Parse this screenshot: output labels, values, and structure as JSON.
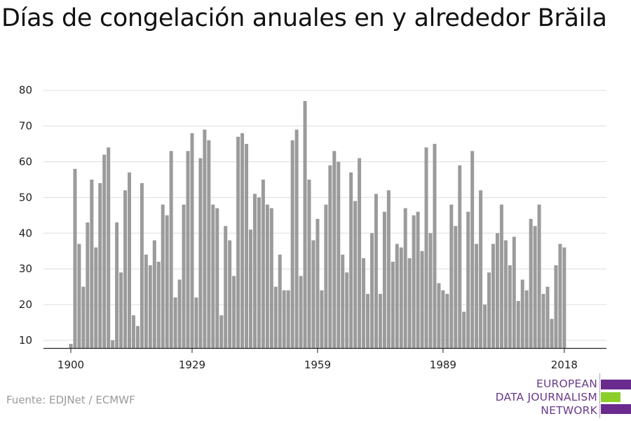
{
  "title": "Días de congelación anuales en y alrededor Brăila",
  "source": "Fuente: EDJNet / ECMWF",
  "logo": {
    "line1": "EUROPEAN",
    "line2": "DATA JOURNALISM",
    "line3": "NETWORK"
  },
  "colors": {
    "bar": "#9b9b9b",
    "grid": "#dddddd",
    "axis": "#222222",
    "logo_purple": "#6b2a8e",
    "logo_green": "#8ccf2a"
  },
  "chart_data": {
    "type": "bar",
    "title": "Días de congelación anuales en y alrededor Brăila",
    "xlabel": "",
    "ylabel": "",
    "x_ticks": [
      "1900",
      "1929",
      "1959",
      "1989",
      "2018"
    ],
    "y_ticks": [
      10,
      20,
      30,
      40,
      50,
      60,
      70,
      80
    ],
    "ylim": [
      8,
      82
    ],
    "grid": "horizontal",
    "start_year": 1900,
    "years": [
      1900,
      1901,
      1902,
      1903,
      1904,
      1905,
      1906,
      1907,
      1908,
      1909,
      1910,
      1911,
      1912,
      1913,
      1914,
      1915,
      1916,
      1917,
      1918,
      1919,
      1920,
      1921,
      1922,
      1923,
      1924,
      1925,
      1926,
      1927,
      1928,
      1929,
      1930,
      1931,
      1932,
      1933,
      1934,
      1935,
      1936,
      1937,
      1938,
      1939,
      1940,
      1941,
      1942,
      1943,
      1944,
      1945,
      1946,
      1947,
      1948,
      1949,
      1950,
      1951,
      1952,
      1953,
      1954,
      1955,
      1956,
      1957,
      1958,
      1959,
      1960,
      1961,
      1962,
      1963,
      1964,
      1965,
      1966,
      1967,
      1968,
      1969,
      1970,
      1971,
      1972,
      1973,
      1974,
      1975,
      1976,
      1977,
      1978,
      1979,
      1980,
      1981,
      1982,
      1983,
      1984,
      1985,
      1986,
      1987,
      1988,
      1989,
      1990,
      1991,
      1992,
      1993,
      1994,
      1995,
      1996,
      1997,
      1998,
      1999,
      2000,
      2001,
      2002,
      2003,
      2004,
      2005,
      2006,
      2007,
      2008,
      2009,
      2010,
      2011,
      2012,
      2013,
      2014,
      2015,
      2016,
      2017,
      2018
    ],
    "values": [
      9,
      58,
      37,
      25,
      43,
      55,
      36,
      54,
      62,
      64,
      10,
      43,
      29,
      52,
      57,
      17,
      14,
      54,
      34,
      31,
      38,
      32,
      48,
      45,
      63,
      22,
      27,
      48,
      63,
      68,
      22,
      61,
      69,
      66,
      48,
      47,
      17,
      42,
      38,
      28,
      67,
      68,
      65,
      41,
      51,
      50,
      55,
      48,
      47,
      25,
      34,
      24,
      24,
      66,
      69,
      28,
      77,
      55,
      38,
      44,
      24,
      48,
      59,
      63,
      60,
      34,
      29,
      57,
      49,
      61,
      33,
      23,
      40,
      51,
      23,
      46,
      52,
      32,
      37,
      36,
      47,
      33,
      45,
      46,
      35,
      64,
      40,
      65,
      26,
      24,
      23,
      48,
      42,
      59,
      18,
      46,
      63,
      37,
      52,
      20,
      29,
      37,
      40,
      48,
      38,
      31,
      39,
      21,
      27,
      24,
      44,
      42,
      48,
      23,
      25,
      16,
      31,
      37,
      36
    ]
  }
}
